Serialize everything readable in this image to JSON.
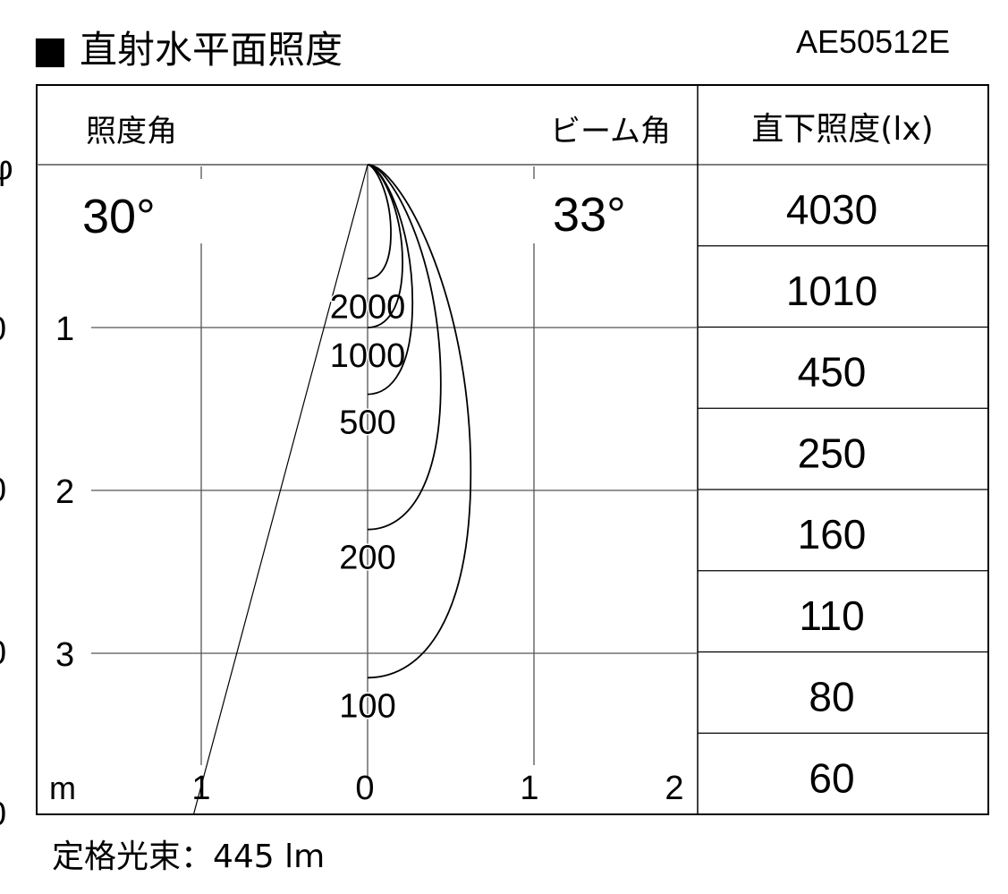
{
  "header": {
    "title": "■ 直射水平面照度",
    "model": "AE50512E"
  },
  "footer": {
    "rated_flux": "定格光束：445 lm"
  },
  "left_edge_fragments": [
    "φ",
    "0",
    "0",
    "0",
    "0"
  ],
  "diagram": {
    "illuminance_angle_label": "照度角",
    "illuminance_angle_value": "30°",
    "beam_angle_label": "ビーム角",
    "beam_angle_value": "33°",
    "depth_ticks": [
      "1",
      "2",
      "3"
    ],
    "unit_label": "m",
    "horizontal_ticks": [
      "1",
      "0",
      "1",
      "2"
    ],
    "isolux_curves": [
      {
        "label": "2000",
        "depth_m": 0.7,
        "max_half_width_m": 0.14
      },
      {
        "label": "1000",
        "depth_m": 1.0,
        "max_half_width_m": 0.21
      },
      {
        "label": "500",
        "depth_m": 1.41,
        "max_half_width_m": 0.27
      },
      {
        "label": "200",
        "depth_m": 2.24,
        "max_half_width_m": 0.44
      },
      {
        "label": "100",
        "depth_m": 3.15,
        "max_half_width_m": 0.62
      }
    ],
    "beam_half_angle_deg": 15
  },
  "table": {
    "header": "直下照度(lx)",
    "values": [
      "4030",
      "1010",
      "450",
      "250",
      "160",
      "110",
      "80",
      "60"
    ]
  },
  "colors": {
    "line": "#000000",
    "grid": "#555555",
    "background": "#ffffff"
  }
}
